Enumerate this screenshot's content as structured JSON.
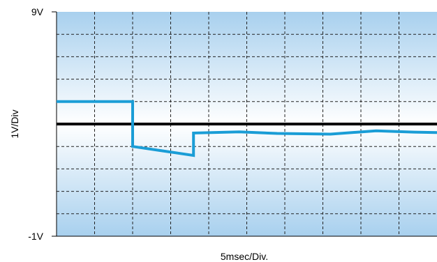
{
  "chart_data": {
    "type": "line",
    "title": "",
    "xlabel": "5msec/Div.",
    "ylabel": "1V/Div",
    "y_tick_labels": {
      "top": "9V",
      "bottom": "-1V"
    },
    "xlim": [
      0,
      50
    ],
    "ylim": [
      -1,
      9
    ],
    "x_divisions": 10,
    "y_divisions": 10,
    "grid": true,
    "grid_style": "dashed",
    "background": "vertical gradient, light blue (top) to white (middle) to light blue (bottom)",
    "reference_level": 4,
    "series": [
      {
        "x": [
          0,
          10,
          10,
          14,
          18,
          18,
          24,
          29,
          36,
          42,
          47,
          50
        ],
        "y": [
          5.0,
          5.0,
          3.0,
          2.8,
          2.6,
          3.6,
          3.65,
          3.58,
          3.55,
          3.7,
          3.64,
          3.62
        ]
      }
    ]
  },
  "colors": {
    "trace": "#1a9dd6",
    "reference_line": "#000000",
    "grid": "#222222",
    "background_edge": "#a8d0ee",
    "background_center": "#ffffff"
  }
}
